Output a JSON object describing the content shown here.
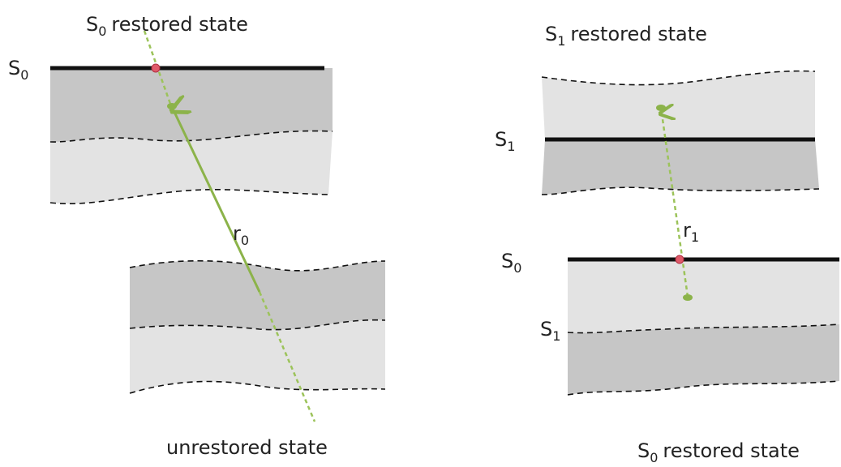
{
  "left": {
    "title": {
      "symbol": "S",
      "subscript": "0",
      "text": "restored state"
    },
    "surface_label": {
      "symbol": "S",
      "subscript": "0"
    },
    "vector_label": {
      "symbol": "r",
      "subscript": "0"
    },
    "caption": "unrestored state"
  },
  "right": {
    "title": {
      "symbol": "S",
      "subscript": "1",
      "text": "restored state"
    },
    "upper_surface_label": {
      "symbol": "S",
      "subscript": "1"
    },
    "vector_label": {
      "symbol": "r",
      "subscript": "1"
    },
    "lower_surface_label": {
      "symbol": "S",
      "subscript": "0"
    },
    "horizon_label": {
      "symbol": "S",
      "subscript": "1"
    },
    "caption": {
      "symbol": "S",
      "subscript": "0",
      "text": "restored state"
    }
  }
}
